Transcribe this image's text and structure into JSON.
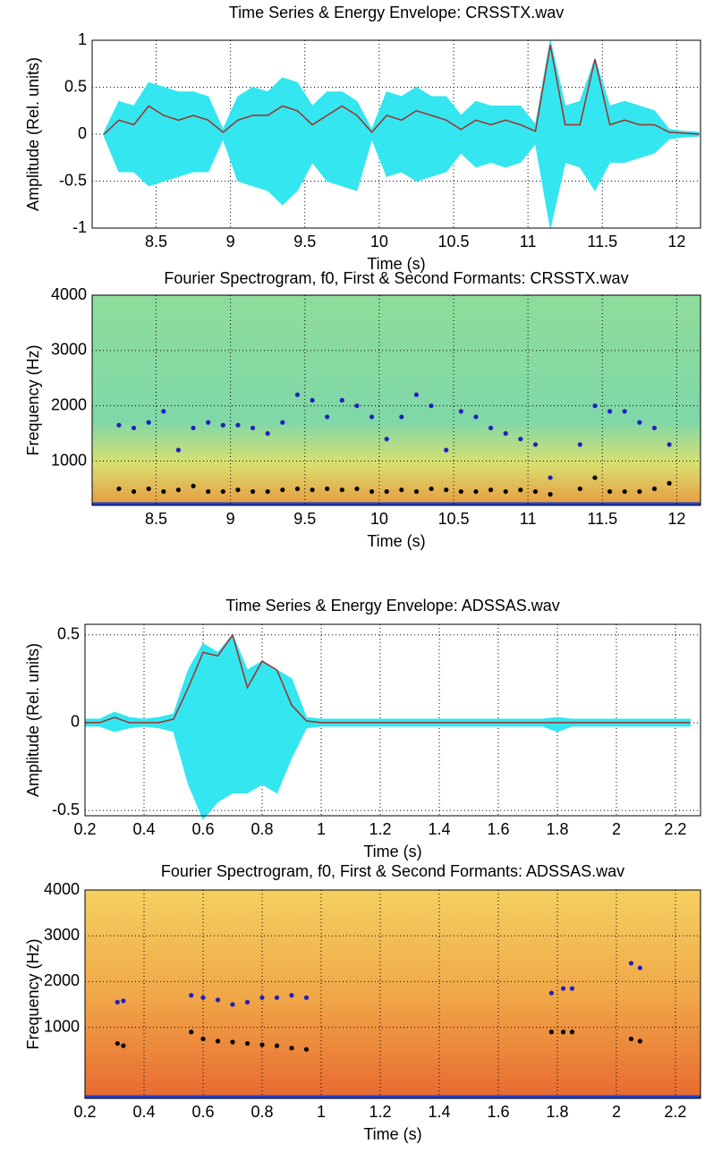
{
  "chart_data": [
    {
      "type": "line",
      "title": "Time Series & Energy Envelope: CRSSTX.wav",
      "xlabel": "Time (s)",
      "ylabel": "Amplitude (Rel. units)",
      "xlim": [
        8.07,
        12.16
      ],
      "ylim": [
        -1,
        1
      ],
      "xticks": [
        8.5,
        9,
        9.5,
        10,
        10.5,
        11,
        11.5,
        12
      ],
      "yticks": [
        -1,
        -0.5,
        0,
        0.5,
        1
      ],
      "grid": true,
      "x": [
        8.15,
        8.25,
        8.35,
        8.45,
        8.55,
        8.65,
        8.75,
        8.85,
        8.95,
        9.05,
        9.15,
        9.25,
        9.35,
        9.45,
        9.55,
        9.65,
        9.75,
        9.85,
        9.95,
        10.05,
        10.15,
        10.25,
        10.35,
        10.45,
        10.55,
        10.65,
        10.75,
        10.85,
        10.95,
        11.05,
        11.15,
        11.25,
        11.35,
        11.45,
        11.55,
        11.65,
        11.75,
        11.85,
        11.95,
        12.05,
        12.15
      ],
      "series": [
        {
          "color": "#33e6f0",
          "style": "area",
          "values": [
            0.02,
            0.35,
            0.3,
            0.55,
            0.5,
            0.45,
            0.45,
            0.4,
            0.05,
            0.4,
            0.5,
            0.45,
            0.6,
            0.55,
            0.3,
            0.45,
            0.45,
            0.35,
            0.05,
            0.45,
            0.4,
            0.5,
            0.4,
            0.4,
            0.2,
            0.35,
            0.3,
            0.3,
            0.3,
            0.1,
            1.0,
            0.3,
            0.35,
            0.8,
            0.3,
            0.35,
            0.3,
            0.25,
            0.05,
            0.03,
            0.02
          ]
        },
        {
          "color": "#33e6f0",
          "style": "area",
          "values": [
            -0.02,
            -0.4,
            -0.4,
            -0.55,
            -0.5,
            -0.45,
            -0.4,
            -0.4,
            -0.05,
            -0.5,
            -0.55,
            -0.6,
            -0.75,
            -0.6,
            -0.3,
            -0.5,
            -0.55,
            -0.6,
            -0.05,
            -0.45,
            -0.4,
            -0.5,
            -0.45,
            -0.4,
            -0.2,
            -0.35,
            -0.3,
            -0.35,
            -0.3,
            -0.1,
            -1.0,
            -0.3,
            -0.35,
            -0.6,
            -0.3,
            -0.3,
            -0.25,
            -0.2,
            -0.05,
            -0.03,
            -0.02
          ]
        },
        {
          "color": "#a0302a",
          "style": "line",
          "values": [
            0,
            0.15,
            0.1,
            0.3,
            0.2,
            0.15,
            0.2,
            0.15,
            0.02,
            0.15,
            0.2,
            0.2,
            0.3,
            0.25,
            0.1,
            0.2,
            0.3,
            0.2,
            0.02,
            0.2,
            0.15,
            0.25,
            0.2,
            0.15,
            0.05,
            0.15,
            0.1,
            0.15,
            0.1,
            0.03,
            0.95,
            0.1,
            0.1,
            0.8,
            0.1,
            0.15,
            0.1,
            0.1,
            0.02,
            0.01,
            0
          ]
        }
      ]
    },
    {
      "type": "spectrogram",
      "title": "Fourier Spectrogram, f0, First & Second Formants: CRSSTX.wav",
      "xlabel": "Time (s)",
      "ylabel": "Frequency (Hz)",
      "xlim": [
        8.07,
        12.16
      ],
      "ylim": [
        200,
        4000
      ],
      "xticks": [
        8.5,
        9,
        9.5,
        10,
        10.5,
        11,
        11.5,
        12
      ],
      "yticks": [
        1000,
        2000,
        3000,
        4000
      ],
      "grid": true,
      "palette": "cool",
      "x": [
        8.15,
        8.25,
        8.35,
        8.45,
        8.55,
        8.65,
        8.75,
        8.85,
        8.95,
        9.05,
        9.15,
        9.25,
        9.35,
        9.45,
        9.55,
        9.65,
        9.75,
        9.85,
        9.95,
        10.05,
        10.15,
        10.25,
        10.35,
        10.45,
        10.55,
        10.65,
        10.75,
        10.85,
        10.95,
        11.05,
        11.15,
        11.25,
        11.35,
        11.45,
        11.55,
        11.65,
        11.75,
        11.85,
        11.95,
        12.05
      ],
      "series": [
        {
          "color": "#2020c0",
          "style": "dots",
          "values": [
            null,
            1650,
            1600,
            1700,
            1900,
            1200,
            1600,
            1700,
            1650,
            1650,
            1600,
            1500,
            1700,
            2200,
            2100,
            1800,
            2100,
            2000,
            1800,
            1400,
            1800,
            2200,
            2000,
            1200,
            1900,
            1800,
            1600,
            1500,
            1400,
            1300,
            700,
            null,
            1300,
            2000,
            1900,
            1900,
            1700,
            1600,
            1300,
            null
          ]
        },
        {
          "color": "#000000",
          "style": "dots",
          "values": [
            null,
            500,
            450,
            500,
            450,
            480,
            550,
            450,
            450,
            480,
            450,
            450,
            480,
            500,
            480,
            500,
            480,
            500,
            450,
            450,
            480,
            450,
            500,
            480,
            450,
            450,
            480,
            450,
            480,
            450,
            400,
            null,
            500,
            700,
            450,
            450,
            450,
            500,
            600,
            null
          ]
        }
      ]
    },
    {
      "type": "line",
      "title": "Time Series & Energy Envelope: ADSSAS.wav",
      "xlabel": "Time (s)",
      "ylabel": "Amplitude (Rel. units)",
      "xlim": [
        0.2,
        2.285
      ],
      "ylim": [
        -0.53,
        0.56
      ],
      "xticks": [
        0.2,
        0.4,
        0.6,
        0.8,
        1,
        1.2,
        1.4,
        1.6,
        1.8,
        2,
        2.2
      ],
      "yticks": [
        -0.5,
        0,
        0.5
      ],
      "grid": true,
      "x": [
        0.2,
        0.25,
        0.3,
        0.35,
        0.4,
        0.45,
        0.5,
        0.55,
        0.6,
        0.65,
        0.7,
        0.75,
        0.8,
        0.85,
        0.9,
        0.95,
        1.0,
        1.05,
        1.1,
        1.15,
        1.2,
        1.25,
        1.3,
        1.35,
        1.4,
        1.45,
        1.5,
        1.55,
        1.6,
        1.65,
        1.7,
        1.75,
        1.8,
        1.85,
        1.9,
        1.95,
        2.0,
        2.05,
        2.1,
        2.15,
        2.2,
        2.25
      ],
      "series": [
        {
          "color": "#33e6f0",
          "style": "area",
          "values": [
            0.02,
            0.02,
            0.06,
            0.03,
            0.02,
            0.03,
            0.05,
            0.3,
            0.45,
            0.4,
            0.5,
            0.3,
            0.35,
            0.3,
            0.25,
            0.03,
            0.02,
            0.02,
            0.02,
            0.02,
            0.02,
            0.02,
            0.02,
            0.02,
            0.02,
            0.02,
            0.02,
            0.02,
            0.02,
            0.02,
            0.02,
            0.02,
            0.03,
            0.02,
            0.02,
            0.02,
            0.02,
            0.02,
            0.02,
            0.02,
            0.02,
            0.02
          ]
        },
        {
          "color": "#33e6f0",
          "style": "area",
          "values": [
            -0.02,
            -0.02,
            -0.05,
            -0.03,
            -0.02,
            -0.03,
            -0.05,
            -0.35,
            -0.55,
            -0.45,
            -0.4,
            -0.4,
            -0.35,
            -0.4,
            -0.2,
            -0.03,
            -0.02,
            -0.02,
            -0.02,
            -0.02,
            -0.02,
            -0.02,
            -0.02,
            -0.02,
            -0.02,
            -0.02,
            -0.02,
            -0.02,
            -0.02,
            -0.02,
            -0.02,
            -0.02,
            -0.05,
            -0.02,
            -0.02,
            -0.02,
            -0.02,
            -0.02,
            -0.02,
            -0.02,
            -0.02,
            -0.02
          ]
        },
        {
          "color": "#a0302a",
          "style": "line",
          "values": [
            0,
            0,
            0.03,
            0,
            0,
            0,
            0.02,
            0.2,
            0.4,
            0.38,
            0.5,
            0.2,
            0.35,
            0.3,
            0.1,
            0.01,
            0,
            0,
            0,
            0,
            0,
            0,
            0,
            0,
            0,
            0,
            0,
            0,
            0,
            0,
            0,
            0,
            0,
            0,
            0,
            0,
            0,
            0,
            0,
            0,
            0,
            0
          ]
        }
      ]
    },
    {
      "type": "spectrogram",
      "title": "Fourier Spectrogram, f0, First & Second Formants: ADSSAS.wav",
      "xlabel": "Time (s)",
      "ylabel": "Frequency (Hz)",
      "xlim": [
        0.2,
        2.285
      ],
      "ylim": [
        -550,
        4000
      ],
      "xticks": [
        0.2,
        0.4,
        0.6,
        0.8,
        1,
        1.2,
        1.4,
        1.6,
        1.8,
        2,
        2.2
      ],
      "yticks": [
        1000,
        2000,
        3000,
        4000
      ],
      "grid": true,
      "palette": "warm",
      "x": [
        0.31,
        0.33,
        0.56,
        0.6,
        0.65,
        0.7,
        0.75,
        0.8,
        0.85,
        0.9,
        0.95,
        1.78,
        1.82,
        1.85,
        2.05,
        2.08
      ],
      "series": [
        {
          "color": "#2020c0",
          "style": "dots",
          "values": [
            1550,
            1580,
            1700,
            1650,
            1600,
            1500,
            1550,
            1650,
            1650,
            1700,
            1650,
            1750,
            1850,
            1850,
            2400,
            2300
          ]
        },
        {
          "color": "#000000",
          "style": "dots",
          "values": [
            650,
            600,
            900,
            750,
            700,
            680,
            650,
            620,
            600,
            550,
            520,
            900,
            900,
            900,
            750,
            700
          ]
        }
      ]
    }
  ]
}
